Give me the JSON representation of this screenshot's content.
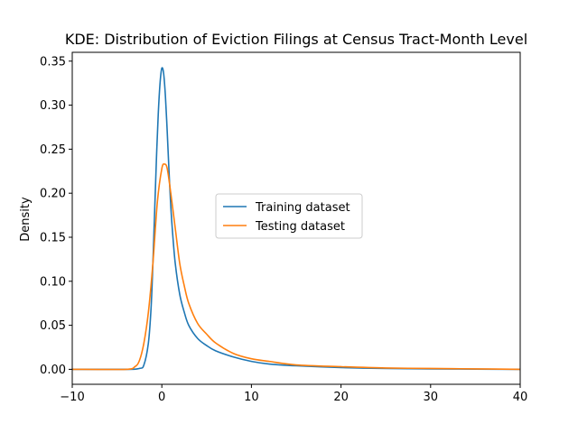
{
  "chart_data": {
    "type": "line",
    "title": "KDE: Distribution of Eviction Filings at Census Tract-Month Level",
    "xlabel": "",
    "ylabel": "Density",
    "xlim": [
      -10,
      40
    ],
    "ylim": [
      -0.017,
      0.36
    ],
    "x_ticks": [
      -10,
      0,
      10,
      20,
      30,
      40
    ],
    "x_tick_labels": [
      "−10",
      "0",
      "10",
      "20",
      "30",
      "40"
    ],
    "y_ticks": [
      0.0,
      0.05,
      0.1,
      0.15,
      0.2,
      0.25,
      0.3,
      0.35
    ],
    "y_tick_labels": [
      "0.00",
      "0.05",
      "0.10",
      "0.15",
      "0.20",
      "0.25",
      "0.30",
      "0.35"
    ],
    "grid": false,
    "legend_position": "center",
    "series": [
      {
        "name": "Training dataset",
        "color": "#1f77b4",
        "x": [
          -10,
          -4,
          -2.5,
          -2,
          -1.5,
          -1.2,
          -1,
          -0.8,
          -0.6,
          -0.4,
          -0.2,
          0,
          0.2,
          0.4,
          0.6,
          0.8,
          1,
          1.2,
          1.5,
          2,
          2.5,
          3,
          4,
          5,
          6,
          8,
          10,
          12,
          15,
          20,
          25,
          30,
          35,
          40
        ],
        "y": [
          0,
          0,
          0.001,
          0.005,
          0.03,
          0.07,
          0.12,
          0.18,
          0.24,
          0.29,
          0.325,
          0.342,
          0.336,
          0.31,
          0.27,
          0.225,
          0.185,
          0.155,
          0.12,
          0.085,
          0.065,
          0.05,
          0.035,
          0.027,
          0.021,
          0.014,
          0.009,
          0.006,
          0.004,
          0.002,
          0.001,
          0.0005,
          0.0002,
          0
        ]
      },
      {
        "name": "Testing dataset",
        "color": "#ff7f0e",
        "x": [
          -10,
          -4,
          -3,
          -2.5,
          -2,
          -1.5,
          -1,
          -0.5,
          0,
          0.3,
          0.6,
          1,
          1.5,
          2,
          2.5,
          3,
          4,
          5,
          6,
          8,
          10,
          12,
          15,
          20,
          25,
          30,
          35,
          40
        ],
        "y": [
          0,
          0,
          0.003,
          0.01,
          0.03,
          0.065,
          0.12,
          0.19,
          0.228,
          0.233,
          0.228,
          0.2,
          0.16,
          0.12,
          0.095,
          0.075,
          0.052,
          0.04,
          0.03,
          0.018,
          0.012,
          0.009,
          0.005,
          0.003,
          0.0015,
          0.001,
          0.0005,
          0
        ]
      }
    ]
  }
}
